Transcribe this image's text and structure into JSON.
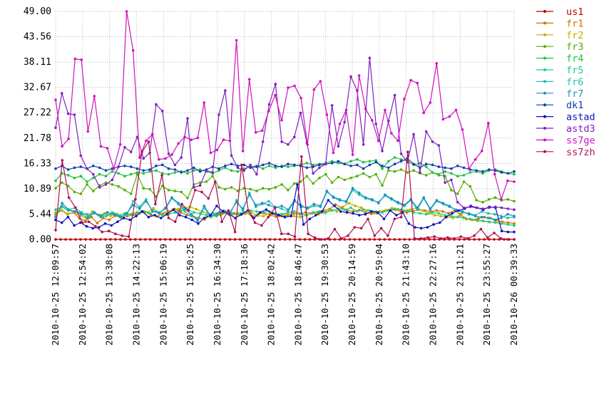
{
  "chart_data": {
    "type": "line",
    "title": "",
    "xlabel": "",
    "ylabel": "",
    "ylim": [
      0,
      49
    ],
    "y_ticks": [
      "0.00",
      "5.44",
      "10.89",
      "16.33",
      "21.78",
      "27.22",
      "32.67",
      "38.11",
      "43.56",
      "49.00"
    ],
    "x_ticks": [
      "2010-10-25 12:09:57",
      "2010-10-25 12:54:02",
      "2010-10-25 13:38:08",
      "2010-10-25 14:22:13",
      "2010-10-25 15:06:19",
      "2010-10-25 15:50:25",
      "2010-10-25 16:34:30",
      "2010-10-25 17:18:36",
      "2010-10-25 18:02:42",
      "2010-10-25 18:46:47",
      "2010-10-25 19:30:53",
      "2010-10-25 20:14:59",
      "2010-10-25 20:59:04",
      "2010-10-25 21:43:10",
      "2010-10-25 22:27:16",
      "2010-10-25 23:11:21",
      "2010-10-25 23:55:27",
      "2010-10-26 00:39:33"
    ],
    "grid": true,
    "legend_position": "right",
    "series": [
      {
        "name": "us1",
        "color": "#c00000",
        "values": [
          0,
          0,
          0,
          0,
          0,
          0,
          0,
          0,
          0,
          0,
          0,
          0,
          0,
          0,
          0,
          0,
          0,
          0,
          0,
          0,
          0,
          0,
          0,
          0,
          0,
          0,
          0,
          0,
          0,
          0,
          0,
          0,
          0,
          0,
          0,
          0,
          0,
          0,
          0,
          0,
          0,
          0,
          0,
          0,
          0,
          0,
          0,
          0,
          0,
          0,
          0,
          0,
          0,
          0,
          0,
          0,
          0,
          0,
          0,
          0,
          0,
          0,
          0,
          0,
          0,
          0,
          0,
          0,
          0,
          0,
          0,
          0,
          0,
          0,
          0,
          0,
          0,
          0,
          0,
          0,
          0,
          0,
          0,
          0,
          0,
          0,
          0,
          0,
          0,
          0,
          0,
          0,
          0
        ]
      },
      {
        "name": "fr1",
        "color": "#d07000",
        "values": [
          5.5,
          6.2,
          5.4,
          5.8,
          4.5,
          4.0,
          4.8,
          3.5,
          4.6,
          4.2,
          5.1,
          4.7,
          5.0,
          5.2,
          5.6,
          5.9,
          5.3,
          4.9,
          5.5,
          6.0,
          6.5,
          5.8,
          5.2,
          5.0,
          4.6,
          4.3,
          5.2,
          5.0,
          5.5,
          6.0,
          5.6,
          5.3,
          5.8,
          4.9,
          5.4,
          5.7,
          5.2,
          4.9,
          5.0,
          5.2,
          5.6,
          5.4,
          5.8,
          5.6,
          5.9,
          6.2,
          6.5,
          7.5,
          6.8,
          6.2,
          6.0,
          6.3,
          5.8,
          5.5,
          5.6,
          6.0,
          6.2,
          6.4,
          6.0,
          5.8,
          6.1,
          6.4,
          6.2,
          6.0,
          6.2,
          6.0,
          5.6,
          6.2,
          5.4,
          4.4,
          4.2,
          4.5,
          4.8,
          4.6,
          4.2,
          3.8,
          3.6,
          3.4
        ]
      },
      {
        "name": "fr2",
        "color": "#c0b000",
        "values": [
          5.8,
          6.3,
          5.5,
          5.9,
          5.0,
          4.6,
          6.0,
          5.2,
          5.6,
          5.1,
          5.5,
          4.8,
          5.2,
          5.6,
          6.0,
          5.8,
          6.7,
          5.6,
          5.8,
          6.2,
          6.5,
          6.8,
          7.0,
          6.5,
          6.0,
          5.5,
          5.4,
          5.2,
          5.8,
          5.4,
          5.2,
          5.5,
          5.8,
          5.1,
          5.0,
          5.6,
          5.2,
          5.3,
          5.5,
          5.0,
          4.8,
          5.2,
          5.6,
          5.4,
          5.8,
          6.4,
          6.0,
          7.0,
          7.8,
          7.2,
          6.8,
          6.2,
          5.8,
          6.0,
          6.3,
          6.7,
          6.5,
          6.0,
          6.4,
          6.8,
          6.2,
          5.6,
          5.2,
          5.0,
          4.8,
          4.6,
          5.0,
          4.6,
          4.2,
          4.0,
          3.9,
          3.7,
          3.8,
          3.5,
          3.2,
          3.0
        ]
      },
      {
        "name": "fr3",
        "color": "#50b000",
        "values": [
          11.0,
          12.2,
          11.5,
          10.2,
          9.8,
          11.8,
          10.4,
          11.6,
          12.2,
          11.8,
          11.4,
          10.6,
          9.8,
          14.0,
          11.0,
          10.8,
          9.2,
          11.5,
          10.6,
          10.4,
          10.2,
          8.9,
          11.8,
          12.2,
          12.4,
          13.6,
          11.2,
          10.8,
          11.2,
          10.4,
          11.0,
          10.8,
          10.4,
          11.0,
          10.8,
          11.2,
          11.8,
          10.6,
          12.0,
          12.4,
          13.6,
          12.0,
          13.2,
          14.0,
          12.2,
          13.4,
          12.8,
          13.2,
          13.6,
          14.2,
          13.4,
          14.0,
          11.6,
          14.8,
          14.6,
          15.0,
          14.4,
          14.8,
          14.2,
          13.8,
          14.4,
          13.8,
          13.6,
          10.6,
          9.8,
          12.4,
          11.4,
          8.4,
          8.0,
          8.6,
          9.0,
          8.4,
          8.6,
          8.2
        ]
      },
      {
        "name": "fr4",
        "color": "#20c040",
        "values": [
          12.6,
          14.2,
          13.8,
          13.2,
          13.6,
          12.4,
          13.2,
          14.0,
          13.6,
          14.6,
          14.2,
          13.6,
          14.0,
          14.4,
          14.2,
          14.6,
          14.8,
          14.2,
          14.0,
          14.4,
          14.6,
          14.2,
          14.8,
          15.0,
          14.6,
          14.2,
          14.8,
          15.4,
          14.8,
          14.6,
          15.2,
          15.6,
          15.8,
          15.2,
          15.8,
          15.4,
          15.8,
          15.6,
          15.8,
          16.0,
          16.4,
          16.0,
          16.2,
          16.4,
          16.8,
          16.4,
          16.2,
          16.8,
          17.2,
          16.6,
          16.8,
          17.0,
          15.2,
          16.8,
          17.6,
          17.2,
          16.8,
          16.0,
          16.4,
          15.6,
          14.4,
          14.0,
          14.6,
          14.2,
          13.6,
          13.8,
          14.4,
          14.6,
          14.2,
          14.8,
          15.0,
          14.6,
          14.2,
          14.0
        ]
      },
      {
        "name": "fr5",
        "color": "#20d080",
        "values": [
          6.4,
          7.0,
          6.2,
          6.0,
          5.8,
          5.4,
          5.6,
          5.2,
          5.0,
          5.8,
          5.2,
          5.6,
          5.4,
          5.8,
          6.0,
          5.6,
          6.0,
          5.2,
          5.4,
          5.8,
          6.2,
          6.4,
          5.8,
          5.6,
          5.2,
          5.6,
          5.8,
          6.0,
          5.4,
          5.6,
          5.8,
          6.2,
          6.0,
          5.8,
          6.0,
          5.6,
          5.4,
          5.8,
          6.0,
          5.6,
          5.2,
          5.8,
          6.0,
          5.8,
          6.2,
          6.6,
          6.4,
          6.8,
          6.0,
          6.4,
          6.2,
          6.0,
          5.8,
          6.2,
          6.6,
          6.4,
          6.2,
          5.8,
          5.6,
          5.4,
          5.8,
          5.6,
          5.2,
          5.0,
          4.8,
          4.6,
          4.4,
          4.2,
          4.0,
          3.8,
          3.6,
          3.4,
          3.2,
          3.0
        ]
      },
      {
        "name": "fr6",
        "color": "#20c0b0",
        "values": [
          5.0,
          7.2,
          6.4,
          6.8,
          5.8,
          5.0,
          5.6,
          4.8,
          5.2,
          5.6,
          5.0,
          5.2,
          8.2,
          7.0,
          8.6,
          6.0,
          5.8,
          6.6,
          8.8,
          7.6,
          6.0,
          5.0,
          4.4,
          6.8,
          4.8,
          5.2,
          6.0,
          5.4,
          8.4,
          6.2,
          10.0,
          7.0,
          7.6,
          8.2,
          7.0,
          6.6,
          6.0,
          8.2,
          7.4,
          6.6,
          7.2,
          7.0,
          10.2,
          9.2,
          8.6,
          8.0,
          10.6,
          9.6,
          8.8,
          8.4,
          8.0,
          9.4,
          8.6,
          7.8,
          7.2,
          8.4,
          6.4,
          8.8,
          6.4,
          8.2,
          7.6,
          7.0,
          6.4,
          5.8,
          5.6,
          5.2,
          6.0,
          5.6,
          5.4,
          5.0,
          4.6,
          4.8
        ]
      },
      {
        "name": "fr7",
        "color": "#2090c0",
        "values": [
          4.8,
          7.8,
          6.4,
          6.0,
          5.4,
          4.6,
          5.8,
          5.0,
          5.8,
          5.4,
          4.8,
          5.6,
          7.4,
          6.6,
          8.2,
          6.2,
          5.6,
          6.8,
          9.0,
          7.8,
          6.6,
          5.4,
          4.0,
          7.2,
          5.0,
          5.4,
          6.2,
          5.8,
          8.0,
          6.6,
          9.6,
          7.4,
          7.8,
          7.4,
          6.8,
          7.2,
          6.4,
          8.4,
          7.0,
          6.8,
          7.6,
          7.2,
          10.4,
          9.0,
          8.4,
          8.2,
          11.0,
          10.0,
          9.0,
          8.6,
          7.8,
          9.6,
          8.8,
          8.0,
          7.4,
          8.6,
          6.8,
          9.0,
          6.6,
          8.4,
          7.8,
          7.2,
          6.2,
          6.0,
          5.4,
          5.0,
          4.8,
          4.6,
          4.2,
          4.6,
          5.4,
          5.0
        ]
      },
      {
        "name": "dk1",
        "color": "#1040b0",
        "values": [
          15.2,
          15.8,
          15.0,
          15.4,
          15.6,
          15.2,
          15.8,
          15.4,
          14.8,
          15.2,
          15.6,
          15.8,
          15.6,
          15.2,
          14.8,
          15.0,
          15.8,
          16.0,
          15.2,
          15.0,
          14.4,
          14.8,
          15.4,
          14.6,
          15.0,
          15.6,
          15.2,
          15.8,
          16.2,
          15.8,
          16.0,
          15.4,
          15.6,
          16.0,
          16.4,
          15.8,
          15.6,
          16.2,
          16.0,
          15.8,
          15.4,
          15.6,
          16.0,
          16.2,
          16.4,
          16.8,
          16.2,
          15.8,
          16.0,
          15.2,
          16.0,
          16.6,
          15.8,
          15.4,
          16.2,
          16.8,
          17.4,
          16.2,
          15.4,
          16.2,
          16.0,
          15.6,
          15.4,
          15.2,
          15.8,
          15.4,
          15.0,
          14.8,
          14.6,
          15.0,
          14.8,
          14.4,
          14.2,
          14.6
        ]
      },
      {
        "name": "astad",
        "color": "#1010c0",
        "values": [
          4.2,
          3.6,
          4.8,
          3.0,
          3.6,
          2.8,
          2.4,
          2.6,
          3.4,
          3.0,
          3.8,
          4.6,
          4.2,
          5.0,
          6.0,
          4.8,
          5.2,
          4.6,
          5.4,
          6.4,
          5.2,
          4.8,
          4.2,
          3.4,
          4.6,
          5.2,
          7.2,
          6.0,
          5.4,
          4.6,
          5.4,
          6.2,
          4.6,
          5.8,
          6.4,
          5.6,
          5.2,
          4.8,
          5.0,
          11.8,
          3.2,
          4.4,
          5.2,
          6.0,
          8.4,
          7.2,
          6.0,
          5.8,
          5.6,
          5.2,
          5.4,
          6.0,
          5.8,
          4.4,
          6.2,
          5.2,
          5.8,
          3.4,
          2.6,
          2.4,
          2.6,
          3.2,
          3.6,
          4.8,
          5.6,
          6.2,
          6.6,
          7.2,
          6.8,
          6.4,
          7.0,
          6.8,
          1.8,
          1.6,
          1.6
        ]
      },
      {
        "name": "astd3",
        "color": "#8020c0",
        "values": [
          24.0,
          31.4,
          27.0,
          26.8,
          18.0,
          15.2,
          14.0,
          11.2,
          11.8,
          12.8,
          15.6,
          19.8,
          18.8,
          22.0,
          17.4,
          18.6,
          29.0,
          27.6,
          18.4,
          16.0,
          17.6,
          26.0,
          11.2,
          11.6,
          14.8,
          14.4,
          26.8,
          32.0,
          18.0,
          15.4,
          14.8,
          16.0,
          14.0,
          21.0,
          29.0,
          33.4,
          21.0,
          20.4,
          22.0,
          27.2,
          20.8,
          14.2,
          15.4,
          16.2,
          28.8,
          20.0,
          25.2,
          35.0,
          32.0,
          20.4,
          39.0,
          24.8,
          19.0,
          25.4,
          31.0,
          18.4,
          16.6,
          22.6,
          14.4,
          23.2,
          21.0,
          20.2,
          12.2,
          12.8,
          8.0,
          6.8,
          7.0,
          6.8,
          6.6,
          6.8,
          7.0,
          6.8,
          6.6,
          6.4
        ]
      },
      {
        "name": "ss7ge",
        "color": "#d010c0",
        "values": [
          30.0,
          20.0,
          21.6,
          38.8,
          38.6,
          23.2,
          30.8,
          20.0,
          19.6,
          15.2,
          20.4,
          49.0,
          40.6,
          17.6,
          21.2,
          22.6,
          17.2,
          17.4,
          18.2,
          20.6,
          22.0,
          21.4,
          21.8,
          29.4,
          18.6,
          19.2,
          21.4,
          21.2,
          42.8,
          19.0,
          34.4,
          23.0,
          23.4,
          27.6,
          31.0,
          25.6,
          32.6,
          33.0,
          30.4,
          20.4,
          32.2,
          34.0,
          26.8,
          18.6,
          24.8,
          27.8,
          18.2,
          35.2,
          28.0,
          25.6,
          21.2,
          27.8,
          22.8,
          21.2,
          30.2,
          34.2,
          33.6,
          27.2,
          29.4,
          37.8,
          25.8,
          26.4,
          27.8,
          23.6,
          15.2,
          17.2,
          19.0,
          25.0,
          14.0,
          8.6,
          12.6,
          12.4
        ]
      },
      {
        "name": "ss7zh",
        "color": "#b01050",
        "values": [
          2.0,
          17.0,
          9.0,
          6.8,
          3.6,
          3.8,
          2.8,
          1.6,
          1.8,
          1.2,
          0.8,
          0.6,
          8.6,
          18.8,
          21.0,
          7.6,
          13.8,
          4.6,
          3.8,
          7.6,
          6.2,
          10.6,
          10.2,
          8.8,
          12.4,
          3.8,
          6.2,
          1.6,
          16.0,
          6.2,
          3.6,
          3.0,
          4.8,
          6.8,
          1.2,
          1.2,
          0.6,
          17.8,
          1.2,
          0.4,
          0,
          0.2,
          2.2,
          0.2,
          0.8,
          2.6,
          2.4,
          4.4,
          0.8,
          2.4,
          0.8,
          4.4,
          4.8,
          18.8,
          0.2,
          0.2,
          0.4,
          0.6,
          0.2,
          0.4,
          0.2,
          0.6,
          0.2,
          0.8,
          2.2,
          0.4,
          1.4,
          0.2,
          0,
          0
        ]
      }
    ]
  }
}
